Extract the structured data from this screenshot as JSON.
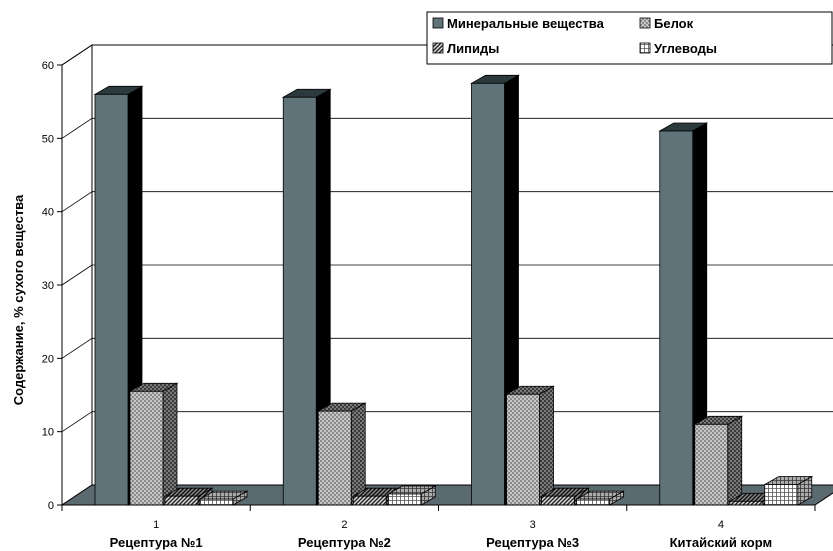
{
  "chart_data": {
    "type": "bar",
    "categories": [
      "1",
      "2",
      "3",
      "4"
    ],
    "category_labels": [
      "Рецептура №1",
      "Рецептура №2",
      "Рецептура №3",
      "Китайский корм"
    ],
    "series": [
      {
        "name": "Минеральные вещества",
        "values": [
          56,
          55.6,
          57.5,
          51
        ],
        "color": "#5f7379"
      },
      {
        "name": "Белок",
        "values": [
          15.5,
          12.8,
          15.1,
          11
        ],
        "color": "#b4b4b4"
      },
      {
        "name": "Липиды",
        "values": [
          1.2,
          1.2,
          1.2,
          0.5
        ],
        "color": "#555555"
      },
      {
        "name": "Углеводы",
        "values": [
          0.8,
          1.5,
          0.8,
          2.8
        ],
        "color": "#eeeeee"
      }
    ],
    "ylabel": "Содержание, % сухого вещества",
    "xlabel": "",
    "ylim": [
      0,
      60
    ],
    "yticks": [
      "0",
      "10",
      "20",
      "30",
      "40",
      "50",
      "60"
    ],
    "grid": true,
    "legend_position": "top-right"
  }
}
